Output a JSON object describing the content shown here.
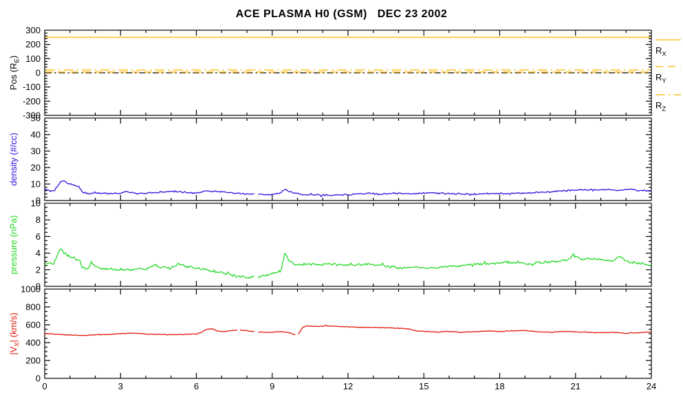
{
  "title": "ACE PLASMA H0 (GSM)   DEC 23 2002",
  "colors": {
    "orange": "#fdc123",
    "blue": "#2c12dd",
    "green": "#25d825",
    "red": "#e01508",
    "axis": "#000000"
  },
  "x_axis": {
    "min": 0,
    "max": 24,
    "major_ticks": [
      0,
      3,
      6,
      9,
      12,
      15,
      18,
      21,
      24
    ],
    "minor_step": 1
  },
  "chart_data": [
    {
      "type": "line",
      "panel": "position",
      "ylabel": "Pos (R_[E])",
      "ylabel_color": "axis",
      "ylim": [
        -300,
        300
      ],
      "yticks": [
        -300,
        -200,
        -100,
        0,
        100,
        200,
        300
      ],
      "yminor_step": 20,
      "zero_line": true,
      "series": [
        {
          "name": "R_[X]",
          "color": "orange",
          "style": "solid",
          "constant": 250
        },
        {
          "name": "R_[Y]",
          "color": "orange",
          "style": "dashed",
          "constant": 5
        },
        {
          "name": "R_[Z]",
          "color": "orange",
          "style": "dashdot",
          "constant": 20
        }
      ],
      "legend": [
        {
          "label": "R_[X]",
          "style": "solid"
        },
        {
          "label": "R_[Y]",
          "style": "dashed"
        },
        {
          "label": "R_[Z]",
          "style": "dashdot"
        }
      ]
    },
    {
      "type": "line",
      "panel": "density",
      "ylabel": "density (#/cc)",
      "ylabel_color": "blue",
      "ylim": [
        0,
        50
      ],
      "yticks": [
        0,
        10,
        20,
        30,
        40,
        50
      ],
      "yminor_step": 2,
      "series": [
        {
          "name": "density",
          "color": "blue",
          "noise": 0.55,
          "gaps": [
            [
              8.3,
              8.45
            ]
          ],
          "points": [
            [
              0,
              6.5
            ],
            [
              0.3,
              5.5
            ],
            [
              0.45,
              7
            ],
            [
              0.6,
              11
            ],
            [
              0.75,
              12
            ],
            [
              0.9,
              10.5
            ],
            [
              1.1,
              9.5
            ],
            [
              1.35,
              8.5
            ],
            [
              1.5,
              5
            ],
            [
              1.8,
              4.3
            ],
            [
              2.2,
              4.6
            ],
            [
              2.6,
              4.2
            ],
            [
              3,
              4.4
            ],
            [
              3.25,
              5.6
            ],
            [
              3.45,
              4.6
            ],
            [
              3.8,
              4.3
            ],
            [
              4.2,
              4.6
            ],
            [
              4.7,
              5.2
            ],
            [
              5,
              5.6
            ],
            [
              5.4,
              5.2
            ],
            [
              5.8,
              4.6
            ],
            [
              6.1,
              4.8
            ],
            [
              6.4,
              5.8
            ],
            [
              6.8,
              5.4
            ],
            [
              7.2,
              5
            ],
            [
              7.6,
              4.4
            ],
            [
              8,
              4
            ],
            [
              8.5,
              3.6
            ],
            [
              9,
              3.6
            ],
            [
              9.3,
              4.2
            ],
            [
              9.5,
              6.8
            ],
            [
              9.65,
              5.5
            ],
            [
              9.9,
              4.2
            ],
            [
              10.3,
              3.6
            ],
            [
              10.8,
              3.4
            ],
            [
              11.3,
              3.2
            ],
            [
              11.8,
              3.4
            ],
            [
              12.3,
              3.9
            ],
            [
              12.8,
              4.3
            ],
            [
              13.3,
              4
            ],
            [
              13.8,
              4.4
            ],
            [
              14.3,
              4.1
            ],
            [
              14.8,
              4.4
            ],
            [
              15.3,
              4.8
            ],
            [
              15.8,
              4.4
            ],
            [
              16.3,
              4
            ],
            [
              16.8,
              3.7
            ],
            [
              17.3,
              4
            ],
            [
              17.8,
              4.3
            ],
            [
              18.3,
              4.1
            ],
            [
              18.8,
              4.4
            ],
            [
              19.3,
              4.7
            ],
            [
              19.8,
              5.2
            ],
            [
              20.3,
              5.6
            ],
            [
              20.8,
              6.2
            ],
            [
              21.3,
              6.5
            ],
            [
              21.8,
              6.4
            ],
            [
              22.3,
              6.6
            ],
            [
              22.7,
              6.1
            ],
            [
              23.1,
              6.9
            ],
            [
              23.5,
              6.2
            ],
            [
              24,
              5.8
            ]
          ]
        }
      ]
    },
    {
      "type": "line",
      "panel": "pressure",
      "ylabel": "pressure (nPa)",
      "ylabel_color": "green",
      "ylim": [
        0,
        10
      ],
      "yticks": [
        0,
        2,
        4,
        6,
        8,
        10
      ],
      "yminor_step": 0.5,
      "series": [
        {
          "name": "pressure",
          "color": "green",
          "noise": 0.18,
          "gaps": [
            [
              8.3,
              8.45
            ]
          ],
          "points": [
            [
              0,
              2.6
            ],
            [
              0.2,
              2.9
            ],
            [
              0.35,
              2.7
            ],
            [
              0.5,
              3.6
            ],
            [
              0.6,
              4.6
            ],
            [
              0.7,
              4.3
            ],
            [
              0.85,
              3.9
            ],
            [
              1,
              3.6
            ],
            [
              1.2,
              3.3
            ],
            [
              1.4,
              3.1
            ],
            [
              1.5,
              2.2
            ],
            [
              1.7,
              2.0
            ],
            [
              1.85,
              2.9
            ],
            [
              2,
              2.4
            ],
            [
              2.2,
              2.1
            ],
            [
              2.6,
              2.1
            ],
            [
              3,
              2.0
            ],
            [
              3.5,
              2.0
            ],
            [
              4,
              2.1
            ],
            [
              4.3,
              2.5
            ],
            [
              4.6,
              2.3
            ],
            [
              5,
              2.2
            ],
            [
              5.3,
              2.7
            ],
            [
              5.6,
              2.4
            ],
            [
              6,
              2.2
            ],
            [
              6.5,
              1.9
            ],
            [
              7,
              1.7
            ],
            [
              7.3,
              1.4
            ],
            [
              7.7,
              1.2
            ],
            [
              8,
              1.1
            ],
            [
              8.4,
              1.15
            ],
            [
              8.8,
              1.35
            ],
            [
              9.1,
              1.6
            ],
            [
              9.35,
              1.8
            ],
            [
              9.5,
              4.0
            ],
            [
              9.65,
              3.2
            ],
            [
              9.9,
              2.6
            ],
            [
              10.3,
              2.7
            ],
            [
              10.8,
              2.6
            ],
            [
              11.3,
              2.7
            ],
            [
              11.8,
              2.6
            ],
            [
              12.3,
              2.5
            ],
            [
              12.8,
              2.7
            ],
            [
              13.3,
              2.5
            ],
            [
              13.8,
              2.3
            ],
            [
              14.3,
              2.2
            ],
            [
              14.8,
              2.3
            ],
            [
              15.3,
              2.2
            ],
            [
              15.8,
              2.4
            ],
            [
              16.3,
              2.5
            ],
            [
              16.8,
              2.6
            ],
            [
              17.3,
              2.7
            ],
            [
              17.8,
              2.7
            ],
            [
              18.3,
              2.9
            ],
            [
              18.8,
              2.8
            ],
            [
              19.3,
              2.7
            ],
            [
              19.8,
              2.9
            ],
            [
              20.3,
              3.0
            ],
            [
              20.7,
              3.2
            ],
            [
              20.95,
              3.9
            ],
            [
              21.2,
              3.3
            ],
            [
              21.6,
              3.3
            ],
            [
              22,
              3.2
            ],
            [
              22.4,
              3.0
            ],
            [
              22.75,
              3.6
            ],
            [
              23,
              3.0
            ],
            [
              23.5,
              2.8
            ],
            [
              24,
              2.5
            ]
          ]
        }
      ]
    },
    {
      "type": "line",
      "panel": "velocity",
      "ylabel": "|V_[X]| (km/s)",
      "ylabel_color": "red",
      "ylim": [
        0,
        1000
      ],
      "yticks": [
        0,
        200,
        400,
        600,
        800,
        1000
      ],
      "yminor_step": 50,
      "series": [
        {
          "name": "|V_X|",
          "color": "red",
          "noise": 5,
          "gaps": [
            [
              7.62,
              7.72
            ],
            [
              8.3,
              8.45
            ],
            [
              9.9,
              10.0
            ]
          ],
          "points": [
            [
              0,
              500
            ],
            [
              0.5,
              495
            ],
            [
              1,
              485
            ],
            [
              1.5,
              480
            ],
            [
              2,
              487
            ],
            [
              2.5,
              492
            ],
            [
              3,
              502
            ],
            [
              3.5,
              506
            ],
            [
              4,
              496
            ],
            [
              4.5,
              494
            ],
            [
              5,
              490
            ],
            [
              5.5,
              492
            ],
            [
              6,
              497
            ],
            [
              6.2,
              515
            ],
            [
              6.4,
              550
            ],
            [
              6.6,
              555
            ],
            [
              6.8,
              532
            ],
            [
              7.1,
              522
            ],
            [
              7.4,
              538
            ],
            [
              7.7,
              545
            ],
            [
              8,
              532
            ],
            [
              8.4,
              520
            ],
            [
              8.8,
              516
            ],
            [
              9.2,
              522
            ],
            [
              9.6,
              518
            ],
            [
              9.85,
              492
            ],
            [
              10.05,
              495
            ],
            [
              10.2,
              570
            ],
            [
              10.4,
              588
            ],
            [
              10.8,
              582
            ],
            [
              11.2,
              590
            ],
            [
              11.6,
              582
            ],
            [
              12,
              576
            ],
            [
              12.5,
              572
            ],
            [
              13,
              570
            ],
            [
              13.5,
              566
            ],
            [
              14,
              562
            ],
            [
              14.4,
              552
            ],
            [
              14.7,
              532
            ],
            [
              15,
              526
            ],
            [
              15.5,
              520
            ],
            [
              16,
              526
            ],
            [
              16.5,
              516
            ],
            [
              17,
              521
            ],
            [
              17.5,
              530
            ],
            [
              18,
              526
            ],
            [
              18.5,
              531
            ],
            [
              19,
              536
            ],
            [
              19.5,
              521
            ],
            [
              20,
              516
            ],
            [
              20.5,
              526
            ],
            [
              21,
              521
            ],
            [
              21.5,
              516
            ],
            [
              22,
              511
            ],
            [
              22.5,
              516
            ],
            [
              23,
              506
            ],
            [
              23.5,
              511
            ],
            [
              24,
              519
            ]
          ]
        }
      ]
    }
  ]
}
